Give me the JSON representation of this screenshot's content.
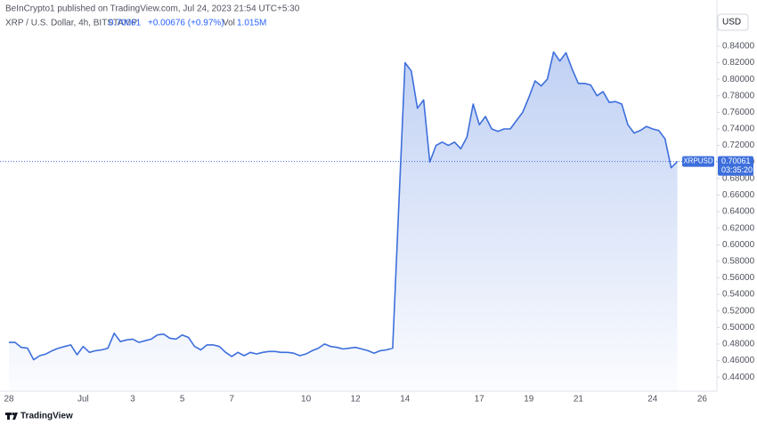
{
  "header": {
    "published": "BeInCrypto1 published on TradingView.com, Jul 24, 2023 21:54 UTC+5:30",
    "symbol": "XRP / U.S. Dollar, 4h, BITSTAMP",
    "change": "+0.00676 (+0.97%)",
    "volume_label": "Vol",
    "volume": "1.015M",
    "currency": "USD",
    "countdown": "03:35:20",
    "brand": "TradingView"
  },
  "chart_data": {
    "type": "area",
    "categories": [
      "28",
      null,
      null,
      null,
      null,
      null,
      null,
      null,
      null,
      null,
      null,
      null,
      "Jul",
      null,
      null,
      null,
      null,
      null,
      null,
      null,
      "3",
      null,
      null,
      null,
      null,
      null,
      null,
      null,
      "5",
      null,
      null,
      null,
      null,
      null,
      null,
      null,
      "7",
      null,
      null,
      null,
      null,
      null,
      null,
      null,
      null,
      null,
      null,
      null,
      "10",
      null,
      null,
      null,
      null,
      null,
      null,
      null,
      "12",
      null,
      null,
      null,
      null,
      null,
      null,
      null,
      "14",
      null,
      null,
      null,
      null,
      null,
      null,
      null,
      null,
      null,
      null,
      null,
      "17",
      null,
      null,
      null,
      null,
      null,
      null,
      null,
      "19",
      null,
      null,
      null,
      null,
      null,
      null,
      null,
      "21",
      null,
      null,
      null,
      null,
      null,
      null,
      null,
      null,
      null,
      null,
      null,
      "24",
      null,
      null,
      null,
      null,
      null,
      null,
      null,
      "26"
    ],
    "series": [
      {
        "name": "XRPUSD",
        "color": "#3d6fdc",
        "values": [
          0.482,
          0.482,
          0.476,
          0.475,
          0.461,
          0.466,
          0.468,
          0.472,
          0.475,
          0.477,
          0.479,
          0.467,
          0.477,
          0.47,
          0.472,
          0.473,
          0.475,
          0.493,
          0.483,
          0.485,
          0.486,
          0.482,
          0.484,
          0.486,
          0.491,
          0.492,
          0.487,
          0.486,
          0.491,
          0.488,
          0.477,
          0.473,
          0.479,
          0.479,
          0.477,
          0.47,
          0.465,
          0.47,
          0.466,
          0.47,
          0.468,
          0.47,
          0.471,
          0.471,
          0.47,
          0.47,
          0.469,
          0.466,
          0.468,
          0.472,
          0.475,
          0.48,
          0.477,
          0.476,
          0.474,
          0.475,
          0.476,
          0.474,
          0.472,
          0.469,
          0.472,
          0.473,
          0.475,
          0.65,
          0.82,
          0.81,
          0.765,
          0.775,
          0.7,
          0.72,
          0.724,
          0.72,
          0.724,
          0.716,
          0.73,
          0.77,
          0.745,
          0.755,
          0.74,
          0.737,
          0.74,
          0.74,
          0.75,
          0.76,
          0.778,
          0.798,
          0.792,
          0.8,
          0.833,
          0.822,
          0.832,
          0.812,
          0.795,
          0.795,
          0.793,
          0.78,
          0.785,
          0.772,
          0.773,
          0.77,
          0.745,
          0.735,
          0.738,
          0.743,
          0.74,
          0.738,
          0.728,
          0.693,
          0.70061,
          null,
          null,
          null,
          null
        ]
      }
    ],
    "ylim": [
      0.423,
      0.885
    ],
    "yticks": [
      {
        "value": 0.44,
        "label": "0.44000"
      },
      {
        "value": 0.46,
        "label": "0.46000"
      },
      {
        "value": 0.48,
        "label": "0.48000"
      },
      {
        "value": 0.5,
        "label": "0.50000"
      },
      {
        "value": 0.52,
        "label": "0.52000"
      },
      {
        "value": 0.54,
        "label": "0.54000"
      },
      {
        "value": 0.56,
        "label": "0.56000"
      },
      {
        "value": 0.58,
        "label": "0.58000"
      },
      {
        "value": 0.6,
        "label": "0.60000"
      },
      {
        "value": 0.62,
        "label": "0.62000"
      },
      {
        "value": 0.64,
        "label": "0.64000"
      },
      {
        "value": 0.66,
        "label": "0.66000"
      },
      {
        "value": 0.68,
        "label": "0.68000"
      },
      {
        "value": 0.7,
        "label": "0.70000"
      },
      {
        "value": 0.72,
        "label": "0.72000"
      },
      {
        "value": 0.74,
        "label": "0.74000"
      },
      {
        "value": 0.76,
        "label": "0.76000"
      },
      {
        "value": 0.78,
        "label": "0.78000"
      },
      {
        "value": 0.8,
        "label": "0.80000"
      },
      {
        "value": 0.82,
        "label": "0.82000"
      },
      {
        "value": 0.84,
        "label": "0.84000"
      }
    ],
    "grid": false
  }
}
